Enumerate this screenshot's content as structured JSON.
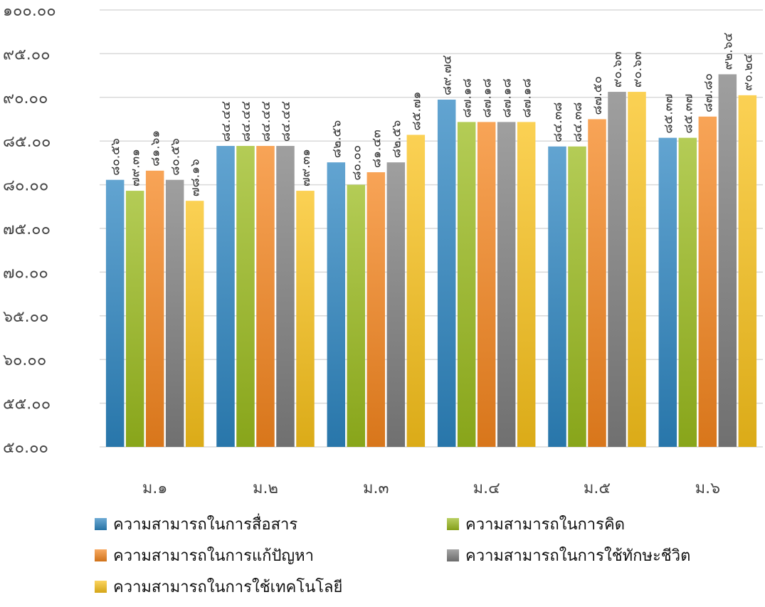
{
  "chart_data": {
    "type": "bar",
    "title": "",
    "xlabel": "",
    "ylabel": "",
    "ylim": [
      50,
      100
    ],
    "y_tick_values": [
      50,
      55,
      60,
      65,
      70,
      75,
      80,
      85,
      90,
      95,
      100
    ],
    "y_tick_labels": [
      "๕๐.๐๐",
      "๕๕.๐๐",
      "๖๐.๐๐",
      "๖๕.๐๐",
      "๗๐.๐๐",
      "๗๕.๐๐",
      "๘๐.๐๐",
      "๘๕.๐๐",
      "๙๐.๐๐",
      "๙๕.๐๐",
      "๑๐๐.๐๐"
    ],
    "grid": true,
    "legend_position": "bottom",
    "categories": [
      "ม.๑",
      "ม.๒",
      "ม.๓",
      "ม.๔",
      "ม.๕",
      "ม.๖"
    ],
    "series": [
      {
        "name": "ความสามารถในการสื่อสาร",
        "color": "#2E86C1",
        "values": [
          80.56,
          84.44,
          82.56,
          89.74,
          84.38,
          85.37
        ],
        "labels": [
          "๘๐.๕๖",
          "๘๔.๔๔",
          "๘๒.๕๖",
          "๘๙.๗๔",
          "๘๔.๓๘",
          "๘๕.๓๗"
        ]
      },
      {
        "name": "ความสามารถในการคิด",
        "color": "#9BBB1E",
        "values": [
          79.31,
          84.44,
          80.0,
          87.18,
          84.38,
          85.37
        ],
        "labels": [
          "๗๙.๓๑",
          "๘๔.๔๔",
          "๘๐.๐๐",
          "๘๗.๑๘",
          "๘๔.๓๘",
          "๘๕.๓๗"
        ]
      },
      {
        "name": "ความสามารถในการแก้ปัญหา",
        "color": "#F5861F",
        "values": [
          81.61,
          84.44,
          81.43,
          87.18,
          87.5,
          87.8
        ],
        "labels": [
          "๘๑.๖๑",
          "๘๔.๔๔",
          "๘๑.๔๓",
          "๘๗.๑๘",
          "๘๗.๕๐",
          "๘๗.๘๐"
        ]
      },
      {
        "name": "ความสามารถในการใช้ทักษะชีวิต",
        "color": "#7F7F7F",
        "values": [
          80.56,
          84.44,
          82.56,
          87.18,
          90.63,
          92.64
        ],
        "labels": [
          "๘๐.๕๖",
          "๘๔.๔๔",
          "๘๒.๕๖",
          "๘๗.๑๘",
          "๙๐.๖๓",
          "๙๒.๖๔"
        ]
      },
      {
        "name": "ความสามารถในการใช้เทคโนโลยี",
        "color": "#F9C21B",
        "values": [
          78.16,
          79.31,
          85.71,
          87.18,
          90.63,
          90.24
        ],
        "labels": [
          "๗๘.๑๖",
          "๗๙.๓๑",
          "๘๕.๗๑",
          "๘๗.๑๘",
          "๙๐.๖๓",
          "๙๐.๒๔"
        ]
      }
    ]
  }
}
